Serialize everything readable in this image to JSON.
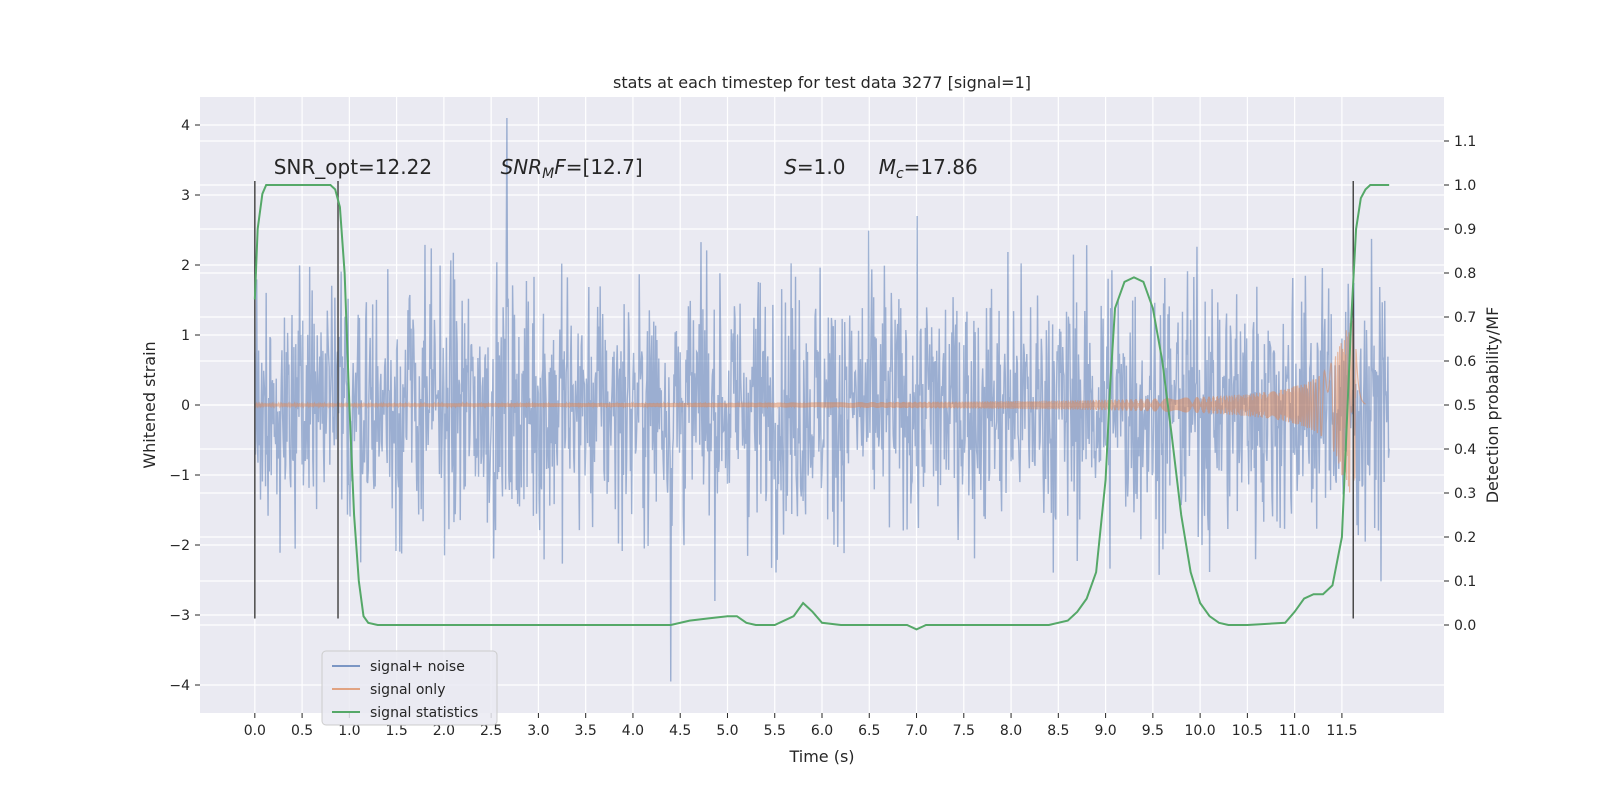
{
  "chart_data": {
    "type": "line",
    "title": "stats at each timestep for test data 3277 [signal=1]",
    "xlabel": "Time (s)",
    "ylabel": "Whitened strain",
    "y2label": "Detection probability/MF",
    "xlim": [
      -0.58,
      12.58
    ],
    "ylim": [
      -4.4,
      4.4
    ],
    "y2lim": [
      -0.2,
      1.2
    ],
    "x_ticks": [
      "0.0",
      "0.5",
      "1.0",
      "1.5",
      "2.0",
      "2.5",
      "3.0",
      "3.5",
      "4.0",
      "4.5",
      "5.0",
      "5.5",
      "6.0",
      "6.5",
      "7.0",
      "7.5",
      "8.0",
      "8.5",
      "9.0",
      "9.5",
      "10.0",
      "10.5",
      "11.0",
      "11.5"
    ],
    "y_ticks": [
      4,
      3,
      2,
      1,
      0,
      -1,
      -2,
      -3,
      -4
    ],
    "y2_ticks": [
      "1.1",
      "1.0",
      "0.9",
      "0.8",
      "0.7",
      "0.6",
      "0.5",
      "0.4",
      "0.3",
      "0.2",
      "0.1",
      "0.0"
    ],
    "grid": true,
    "legend_position": "lower-left",
    "annotations": [
      {
        "text": "SNR_opt=12.22",
        "x": 0.2,
        "y": 3.3
      },
      {
        "text": "SNR_MF=[12.7]",
        "x": 2.6,
        "y": 3.3
      },
      {
        "text": "S=1.0",
        "x": 5.6,
        "y": 3.3
      },
      {
        "text": "M_c=17.86",
        "x": 6.6,
        "y": 3.3
      }
    ],
    "series": [
      {
        "name": "signal+ noise",
        "axis": "left",
        "color": "#4c72b0",
        "alpha": 0.5,
        "x_range": [
          0,
          12
        ],
        "envelope_p98": 2.2,
        "max": 4.1,
        "min": -3.95
      },
      {
        "name": "signal only",
        "axis": "left",
        "color": "#dd8452",
        "alpha": 0.5,
        "chirp": {
          "t_merger": 11.65,
          "amplitude_start": 0.02,
          "amplitude_peak": 1.25,
          "ringdown_end": 11.75
        }
      },
      {
        "name": "signal statistics",
        "axis": "right",
        "color": "#55a868",
        "x": [
          0.0,
          0.03,
          0.08,
          0.12,
          0.2,
          0.4,
          0.6,
          0.8,
          0.85,
          0.9,
          0.95,
          1.0,
          1.05,
          1.1,
          1.15,
          1.2,
          1.3,
          1.5,
          2.0,
          2.5,
          3.0,
          3.5,
          4.0,
          4.4,
          4.6,
          4.8,
          5.0,
          5.1,
          5.2,
          5.3,
          5.5,
          5.7,
          5.8,
          5.85,
          5.9,
          6.0,
          6.2,
          6.5,
          6.9,
          7.0,
          7.1,
          7.5,
          8.0,
          8.4,
          8.6,
          8.7,
          8.8,
          8.9,
          9.0,
          9.05,
          9.1,
          9.2,
          9.3,
          9.4,
          9.5,
          9.6,
          9.7,
          9.8,
          9.9,
          10.0,
          10.1,
          10.2,
          10.3,
          10.5,
          10.9,
          11.0,
          11.1,
          11.2,
          11.3,
          11.4,
          11.5,
          11.55,
          11.6,
          11.65,
          11.7,
          11.75,
          11.8,
          11.85,
          11.95,
          12.0
        ],
        "values": [
          0.74,
          0.9,
          0.98,
          1.0,
          1.0,
          1.0,
          1.0,
          1.0,
          0.99,
          0.95,
          0.8,
          0.5,
          0.25,
          0.1,
          0.02,
          0.005,
          0.0,
          0.0,
          0.0,
          0.0,
          0.0,
          0.0,
          0.0,
          0.0,
          0.01,
          0.015,
          0.02,
          0.02,
          0.005,
          0.0,
          0.0,
          0.02,
          0.05,
          0.04,
          0.03,
          0.005,
          0.0,
          0.0,
          0.0,
          -0.01,
          0.0,
          0.0,
          0.0,
          0.0,
          0.01,
          0.03,
          0.06,
          0.12,
          0.33,
          0.55,
          0.72,
          0.78,
          0.79,
          0.78,
          0.72,
          0.6,
          0.43,
          0.25,
          0.12,
          0.05,
          0.02,
          0.005,
          0.0,
          0.0,
          0.005,
          0.03,
          0.06,
          0.07,
          0.07,
          0.09,
          0.2,
          0.45,
          0.7,
          0.9,
          0.97,
          0.99,
          1.0,
          1.0,
          1.0,
          1.0
        ]
      }
    ],
    "vlines": [
      {
        "x": 0.0,
        "y_top": 3.2,
        "y_bottom": -3.05
      },
      {
        "x": 0.88,
        "y_top": 3.2,
        "y_bottom": -3.05
      },
      {
        "x": 11.62,
        "y_top": 3.2,
        "y_bottom": -3.05
      }
    ]
  }
}
